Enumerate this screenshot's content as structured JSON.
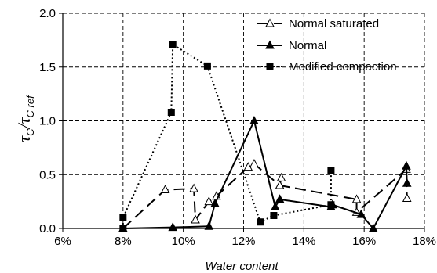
{
  "chart_data": {
    "type": "line",
    "xlabel": "Water content",
    "ylabel": {
      "tau1": "τ",
      "sub1": "C",
      "slash": "/",
      "tau2": "τ",
      "sub2": "C ref"
    },
    "xlim": [
      0.06,
      0.18
    ],
    "ylim": [
      0,
      2.0
    ],
    "x_ticks": [
      0.06,
      0.08,
      0.1,
      0.12,
      0.14,
      0.16,
      0.18
    ],
    "x_tick_labels": [
      "6%",
      "8%",
      "10%",
      "12%",
      "14%",
      "16%",
      "18%"
    ],
    "y_ticks": [
      0,
      0.5,
      1.0,
      1.5,
      2.0
    ],
    "y_tick_labels": [
      "0.0",
      "0.5",
      "1.0",
      "1.5",
      "2.0"
    ],
    "grid": true,
    "legend_position": "top-right",
    "series": [
      {
        "name": "Normal saturated",
        "line": "long-dash",
        "marker": "open-triangle",
        "x": [
          0.08,
          0.094,
          0.1035,
          0.104,
          0.1085,
          0.111,
          0.1215,
          0.1235,
          0.132,
          0.1325,
          0.132,
          0.1575,
          0.1575,
          0.174,
          0.1742
        ],
        "y": [
          0.0,
          0.36,
          0.37,
          0.08,
          0.25,
          0.3,
          0.57,
          0.6,
          0.4,
          0.47,
          0.4,
          0.27,
          0.15,
          0.55,
          0.28
        ]
      },
      {
        "name": "Normal",
        "line": "solid",
        "marker": "filled-triangle",
        "x": [
          0.08,
          0.0965,
          0.1085,
          0.1105,
          0.1235,
          0.1305,
          0.132,
          0.132,
          0.149,
          0.1495,
          0.159,
          0.163,
          0.174,
          0.1742
        ],
        "y": [
          0.0,
          0.01,
          0.02,
          0.23,
          1.0,
          0.2,
          0.27,
          0.27,
          0.2,
          0.22,
          0.13,
          0.0,
          0.58,
          0.42
        ]
      },
      {
        "name": "Modified compaction",
        "line": "dotted",
        "marker": "filled-square",
        "x": [
          0.08,
          0.08,
          0.096,
          0.0965,
          0.108,
          0.1255,
          0.13,
          0.149,
          0.149
        ],
        "y": [
          0.0,
          0.1,
          1.08,
          1.71,
          1.51,
          0.06,
          0.12,
          0.22,
          0.54
        ]
      }
    ]
  }
}
